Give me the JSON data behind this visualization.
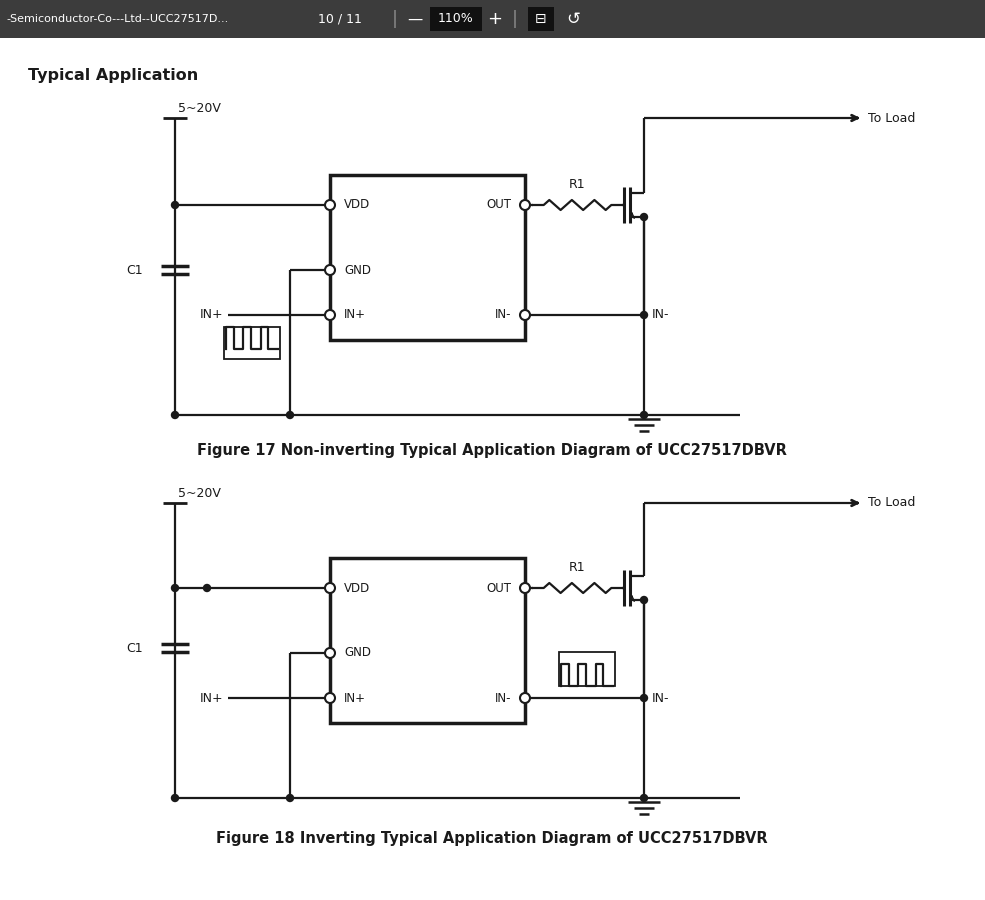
{
  "bg_color": "#ffffff",
  "toolbar_bg": "#3c3c3c",
  "toolbar_text": "-Semiconductor-Co---Ltd--UCC27517D...",
  "toolbar_page": "10 / 11",
  "toolbar_zoom": "110%",
  "section_title": "Typical Application",
  "fig1_caption": "Figure 17 Non-inverting Typical Application Diagram of UCC27517DBVR",
  "fig2_caption": "Figure 18 Inverting Typical Application Diagram of UCC27517DBVR",
  "line_color": "#1a1a1a",
  "lw": 1.6,
  "lw_thick": 2.5,
  "text_color": "#1a1a1a"
}
